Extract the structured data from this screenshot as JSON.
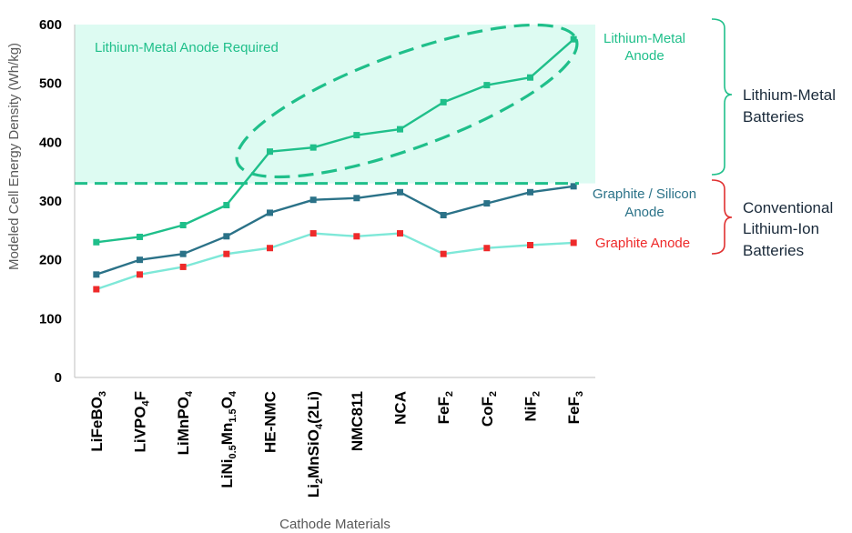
{
  "chart_data": {
    "type": "line",
    "xlabel": "Cathode Materials",
    "ylabel": "Modeled Cell Energy Density (Wh/kg)",
    "ylim": [
      0,
      600
    ],
    "yticks": [
      0,
      100,
      200,
      300,
      400,
      500,
      600
    ],
    "grid": false,
    "categories": [
      {
        "parts": [
          {
            "t": "LiFeBO"
          },
          {
            "t": "3",
            "sub": true
          }
        ]
      },
      {
        "parts": [
          {
            "t": "LiVPO"
          },
          {
            "t": "4",
            "sub": true
          },
          {
            "t": "F"
          }
        ]
      },
      {
        "parts": [
          {
            "t": "LiMnPO"
          },
          {
            "t": "4",
            "sub": true
          }
        ]
      },
      {
        "parts": [
          {
            "t": "LiNi"
          },
          {
            "t": "0.5",
            "sub": true
          },
          {
            "t": "Mn"
          },
          {
            "t": "1.5",
            "sub": true
          },
          {
            "t": "O"
          },
          {
            "t": "4",
            "sub": true
          }
        ]
      },
      {
        "parts": [
          {
            "t": "HE-NMC"
          }
        ]
      },
      {
        "parts": [
          {
            "t": "Li"
          },
          {
            "t": "2",
            "sub": true
          },
          {
            "t": "MnSiO"
          },
          {
            "t": "4",
            "sub": true
          },
          {
            "t": "(2Li)"
          }
        ]
      },
      {
        "parts": [
          {
            "t": "NMC811"
          }
        ]
      },
      {
        "parts": [
          {
            "t": "NCA"
          }
        ]
      },
      {
        "parts": [
          {
            "t": "FeF"
          },
          {
            "t": "2",
            "sub": true
          }
        ]
      },
      {
        "parts": [
          {
            "t": "CoF"
          },
          {
            "t": "2",
            "sub": true
          }
        ]
      },
      {
        "parts": [
          {
            "t": "NiF"
          },
          {
            "t": "2",
            "sub": true
          }
        ]
      },
      {
        "parts": [
          {
            "t": "FeF"
          },
          {
            "t": "3",
            "sub": true
          }
        ]
      }
    ],
    "series": [
      {
        "name": "Lithium-Metal Anode",
        "line_color": "#1fbf8a",
        "marker_color": "#1fbf8a",
        "values": [
          230,
          239,
          259,
          293,
          384,
          391,
          412,
          422,
          468,
          497,
          510,
          575
        ]
      },
      {
        "name": "Graphite / Silicon Anode",
        "line_color": "#2b7288",
        "marker_color": "#2b7288",
        "values": [
          175,
          200,
          210,
          240,
          280,
          302,
          305,
          315,
          276,
          296,
          315,
          325
        ]
      },
      {
        "name": "Graphite Anode",
        "line_color": "#7ee8d8",
        "marker_color": "#ee2a2a",
        "values": [
          150,
          175,
          188,
          210,
          220,
          245,
          240,
          245,
          210,
          220,
          225,
          229
        ]
      }
    ],
    "threshold": {
      "value": 330,
      "color": "#1fbf8a"
    },
    "region": {
      "from": 330,
      "to": 600,
      "color": "#ddfbf2",
      "label": "Lithium-Metal Anode Required"
    },
    "groups": [
      {
        "lines": [
          "Lithium-Metal",
          "Batteries"
        ],
        "color": "#1fbf8a"
      },
      {
        "lines": [
          "Conventional",
          "Lithium-Ion",
          "Batteries"
        ],
        "color": "#e03030"
      }
    ]
  },
  "labels": {
    "region_label": "Lithium-Metal Anode Required",
    "li_metal_anode_1": "Lithium-Metal",
    "li_metal_anode_2": "Anode",
    "gr_si_anode_1": "Graphite / Silicon",
    "gr_si_anode_2": "Anode",
    "graphite_anode": "Graphite Anode",
    "group1_line1": "Lithium-Metal",
    "group1_line2": "Batteries",
    "group2_line1": "Conventional",
    "group2_line2": "Lithium-Ion",
    "group2_line3": "Batteries",
    "y_axis_title": "Modeled Cell Energy Density (Wh/kg)",
    "x_axis_title": "Cathode Materials"
  },
  "colors": {
    "li_metal": "#1fbf8a",
    "gr_si": "#2b7288",
    "graphite_label": "#ee2a2a",
    "group_text": "#1a2a3a",
    "axis_title": "#595959"
  }
}
